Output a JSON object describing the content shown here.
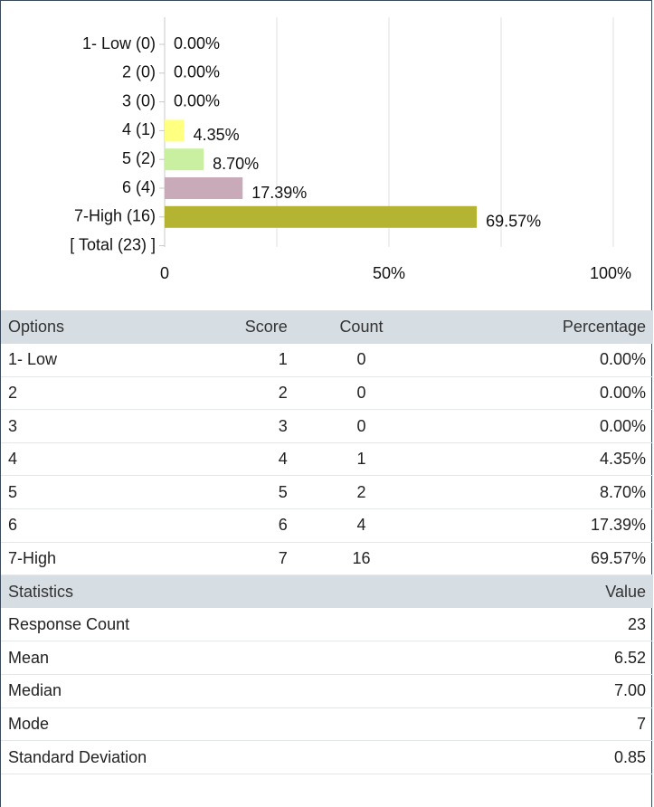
{
  "chart_data": {
    "type": "bar",
    "orientation": "horizontal",
    "categories": [
      "1- Low (0)",
      "2 (0)",
      "3 (0)",
      "4 (1)",
      "5 (2)",
      "6 (4)",
      "7-High (16)",
      "[ Total (23) ]"
    ],
    "values": [
      0,
      0,
      0,
      4.35,
      8.7,
      17.39,
      69.57,
      null
    ],
    "value_labels": [
      "0.00%",
      "0.00%",
      "0.00%",
      "4.35%",
      "8.70%",
      "17.39%",
      "69.57%",
      null
    ],
    "colors": [
      "#ffff80",
      "#ffff80",
      "#ffff80",
      "#ffff80",
      "#c8f0a0",
      "#c8aab8",
      "#b4b432",
      null
    ],
    "xlim": [
      0,
      100
    ],
    "xticks": [
      0,
      {
        "value": 50,
        "label": "50%"
      },
      {
        "value": 100,
        "label": "100%"
      }
    ],
    "minor_xticks": [
      25,
      75
    ],
    "grid": true
  },
  "options_table": {
    "columns": [
      "Options",
      "Score",
      "Count",
      "Percentage"
    ],
    "rows": [
      [
        "1- Low",
        1,
        0,
        "0.00%"
      ],
      [
        "2",
        2,
        0,
        "0.00%"
      ],
      [
        "3",
        3,
        0,
        "0.00%"
      ],
      [
        "4",
        4,
        1,
        "4.35%"
      ],
      [
        "5",
        5,
        2,
        "8.70%"
      ],
      [
        "6",
        6,
        4,
        "17.39%"
      ],
      [
        "7-High",
        7,
        16,
        "69.57%"
      ]
    ]
  },
  "statistics_table": {
    "columns": [
      "Statistics",
      "Value"
    ],
    "rows": [
      [
        "Response Count",
        23
      ],
      [
        "Mean",
        6.52
      ],
      [
        "Median",
        "7.00"
      ],
      [
        "Mode",
        7
      ],
      [
        "Standard Deviation",
        "0.85"
      ]
    ]
  }
}
